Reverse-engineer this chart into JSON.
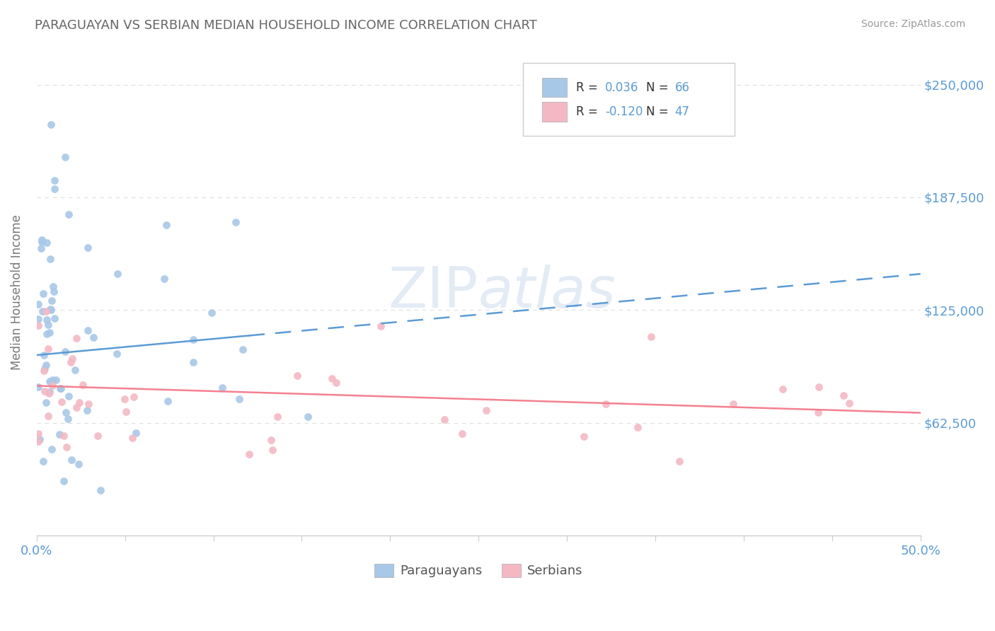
{
  "title": "PARAGUAYAN VS SERBIAN MEDIAN HOUSEHOLD INCOME CORRELATION CHART",
  "source": "Source: ZipAtlas.com",
  "ylabel": "Median Household Income",
  "xlim": [
    0.0,
    0.5
  ],
  "ylim": [
    0,
    270000
  ],
  "yticks": [
    0,
    62500,
    125000,
    187500,
    250000
  ],
  "xticks": [
    0.0,
    0.05,
    0.1,
    0.15,
    0.2,
    0.25,
    0.3,
    0.35,
    0.4,
    0.45,
    0.5
  ],
  "xtick_labels_show": [
    "0.0%",
    "",
    "",
    "",
    "",
    "",
    "",
    "",
    "",
    "",
    "50.0%"
  ],
  "paraguayan_color": "#a8c8e8",
  "serbian_color": "#f4b8c4",
  "paraguayan_line_color": "#5b9bd5",
  "serbian_line_color": "#f48090",
  "paraguayan_R": "0.036",
  "paraguayan_N": "66",
  "serbian_R": "-0.120",
  "serbian_N": "47",
  "title_color": "#666666",
  "source_color": "#999999",
  "yticklabel_color": "#5b9bd5",
  "legend_text_color": "#333333",
  "legend_value_color": "#5b9bd5",
  "grid_color": "#e0e0e0",
  "axis_color": "#cccccc",
  "watermark_color": "#c8d8ec",
  "watermark_alpha": 0.5,
  "py_trend_x": [
    0.0,
    0.5
  ],
  "py_trend_y": [
    100000,
    145000
  ],
  "se_trend_x": [
    0.0,
    0.5
  ],
  "se_trend_y": [
    83000,
    68000
  ]
}
